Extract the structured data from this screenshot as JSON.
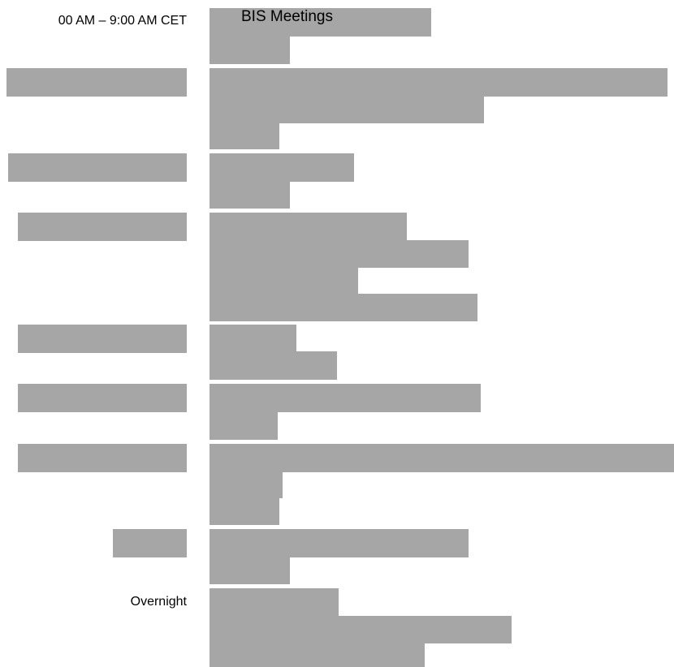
{
  "schedule": {
    "time_label": "00 AM – 9:00 AM CET",
    "title": "BIS Meetings",
    "overnight_label": "Overnight"
  }
}
